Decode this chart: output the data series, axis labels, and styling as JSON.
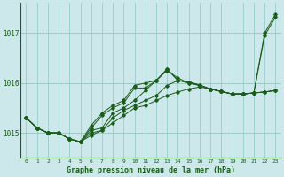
{
  "title": "Graphe pression niveau de la mer (hPa)",
  "background_color": "#cce8ea",
  "grid_color": "#99cccc",
  "line_color": "#1a5c1a",
  "xlim": [
    -0.5,
    23.5
  ],
  "ylim": [
    1014.5,
    1017.6
  ],
  "yticks": [
    1015,
    1016,
    1017
  ],
  "xticks": [
    0,
    1,
    2,
    3,
    4,
    5,
    6,
    7,
    8,
    9,
    10,
    11,
    12,
    13,
    14,
    15,
    16,
    17,
    18,
    19,
    20,
    21,
    22,
    23
  ],
  "series": [
    [
      1015.3,
      1015.1,
      1015.0,
      1015.0,
      1014.88,
      1014.82,
      1014.95,
      1015.05,
      1015.2,
      1015.35,
      1015.5,
      1015.55,
      1015.65,
      1015.75,
      1015.82,
      1015.88,
      1015.92,
      1015.88,
      1015.83,
      1015.78,
      1015.78,
      1015.8,
      1015.82,
      1015.85
    ],
    [
      1015.3,
      1015.1,
      1015.0,
      1015.0,
      1014.88,
      1014.82,
      1015.0,
      1015.05,
      1015.3,
      1015.45,
      1015.55,
      1015.65,
      1015.75,
      1015.95,
      1016.05,
      1016.0,
      1015.95,
      1015.88,
      1015.83,
      1015.78,
      1015.78,
      1015.8,
      1015.82,
      1015.85
    ],
    [
      1015.3,
      1015.1,
      1015.0,
      1015.0,
      1014.88,
      1014.82,
      1015.05,
      1015.1,
      1015.4,
      1015.5,
      1015.65,
      1015.85,
      1016.05,
      1016.25,
      1016.1,
      1016.0,
      1015.95,
      1015.88,
      1015.83,
      1015.78,
      1015.78,
      1015.8,
      1015.82,
      1015.85
    ],
    [
      1015.3,
      1015.1,
      1015.0,
      1015.0,
      1014.88,
      1014.82,
      1015.1,
      1015.35,
      1015.5,
      1015.6,
      1015.9,
      1015.9,
      1016.05,
      1016.28,
      1016.05,
      1016.02,
      1015.96,
      1015.88,
      1015.83,
      1015.78,
      1015.78,
      1015.8,
      1016.95,
      1017.32
    ],
    [
      1015.3,
      1015.1,
      1015.0,
      1015.0,
      1014.88,
      1014.82,
      1015.15,
      1015.4,
      1015.55,
      1015.65,
      1015.95,
      1016.0,
      1016.05,
      1016.28,
      1016.05,
      1016.02,
      1015.96,
      1015.88,
      1015.83,
      1015.78,
      1015.78,
      1015.8,
      1017.0,
      1017.38
    ]
  ],
  "figsize": [
    3.2,
    2.0
  ],
  "dpi": 100
}
